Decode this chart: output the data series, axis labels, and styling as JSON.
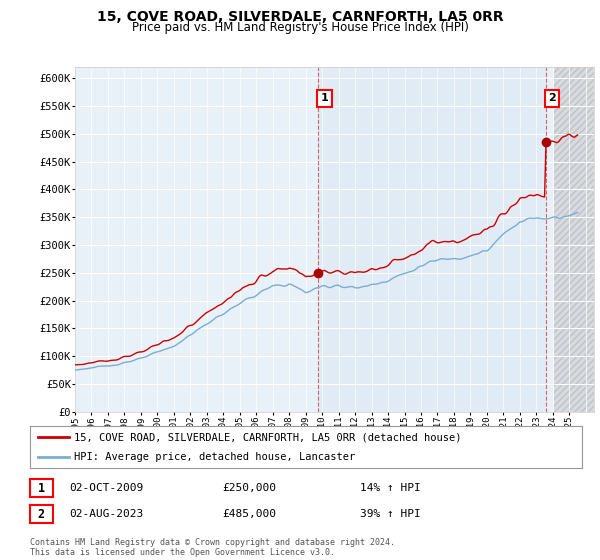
{
  "title": "15, COVE ROAD, SILVERDALE, CARNFORTH, LA5 0RR",
  "subtitle": "Price paid vs. HM Land Registry's House Price Index (HPI)",
  "ylim": [
    0,
    620000
  ],
  "xlim_start": 1995.0,
  "xlim_end": 2026.5,
  "legend_line1": "15, COVE ROAD, SILVERDALE, CARNFORTH, LA5 0RR (detached house)",
  "legend_line2": "HPI: Average price, detached house, Lancaster",
  "sale1_date": "02-OCT-2009",
  "sale1_price": "£250,000",
  "sale1_hpi": "14% ↑ HPI",
  "sale1_year": 2009.75,
  "sale1_value": 250000,
  "sale2_date": "02-AUG-2023",
  "sale2_price": "£485,000",
  "sale2_hpi": "39% ↑ HPI",
  "sale2_year": 2023.58,
  "sale2_value": 485000,
  "footer": "Contains HM Land Registry data © Crown copyright and database right 2024.\nThis data is licensed under the Open Government Licence v3.0.",
  "line_color_sale": "#cc0000",
  "line_color_hpi": "#7aadd4",
  "plot_bg": "#e8f0f8",
  "hatch_bg": "#d8d8d8"
}
